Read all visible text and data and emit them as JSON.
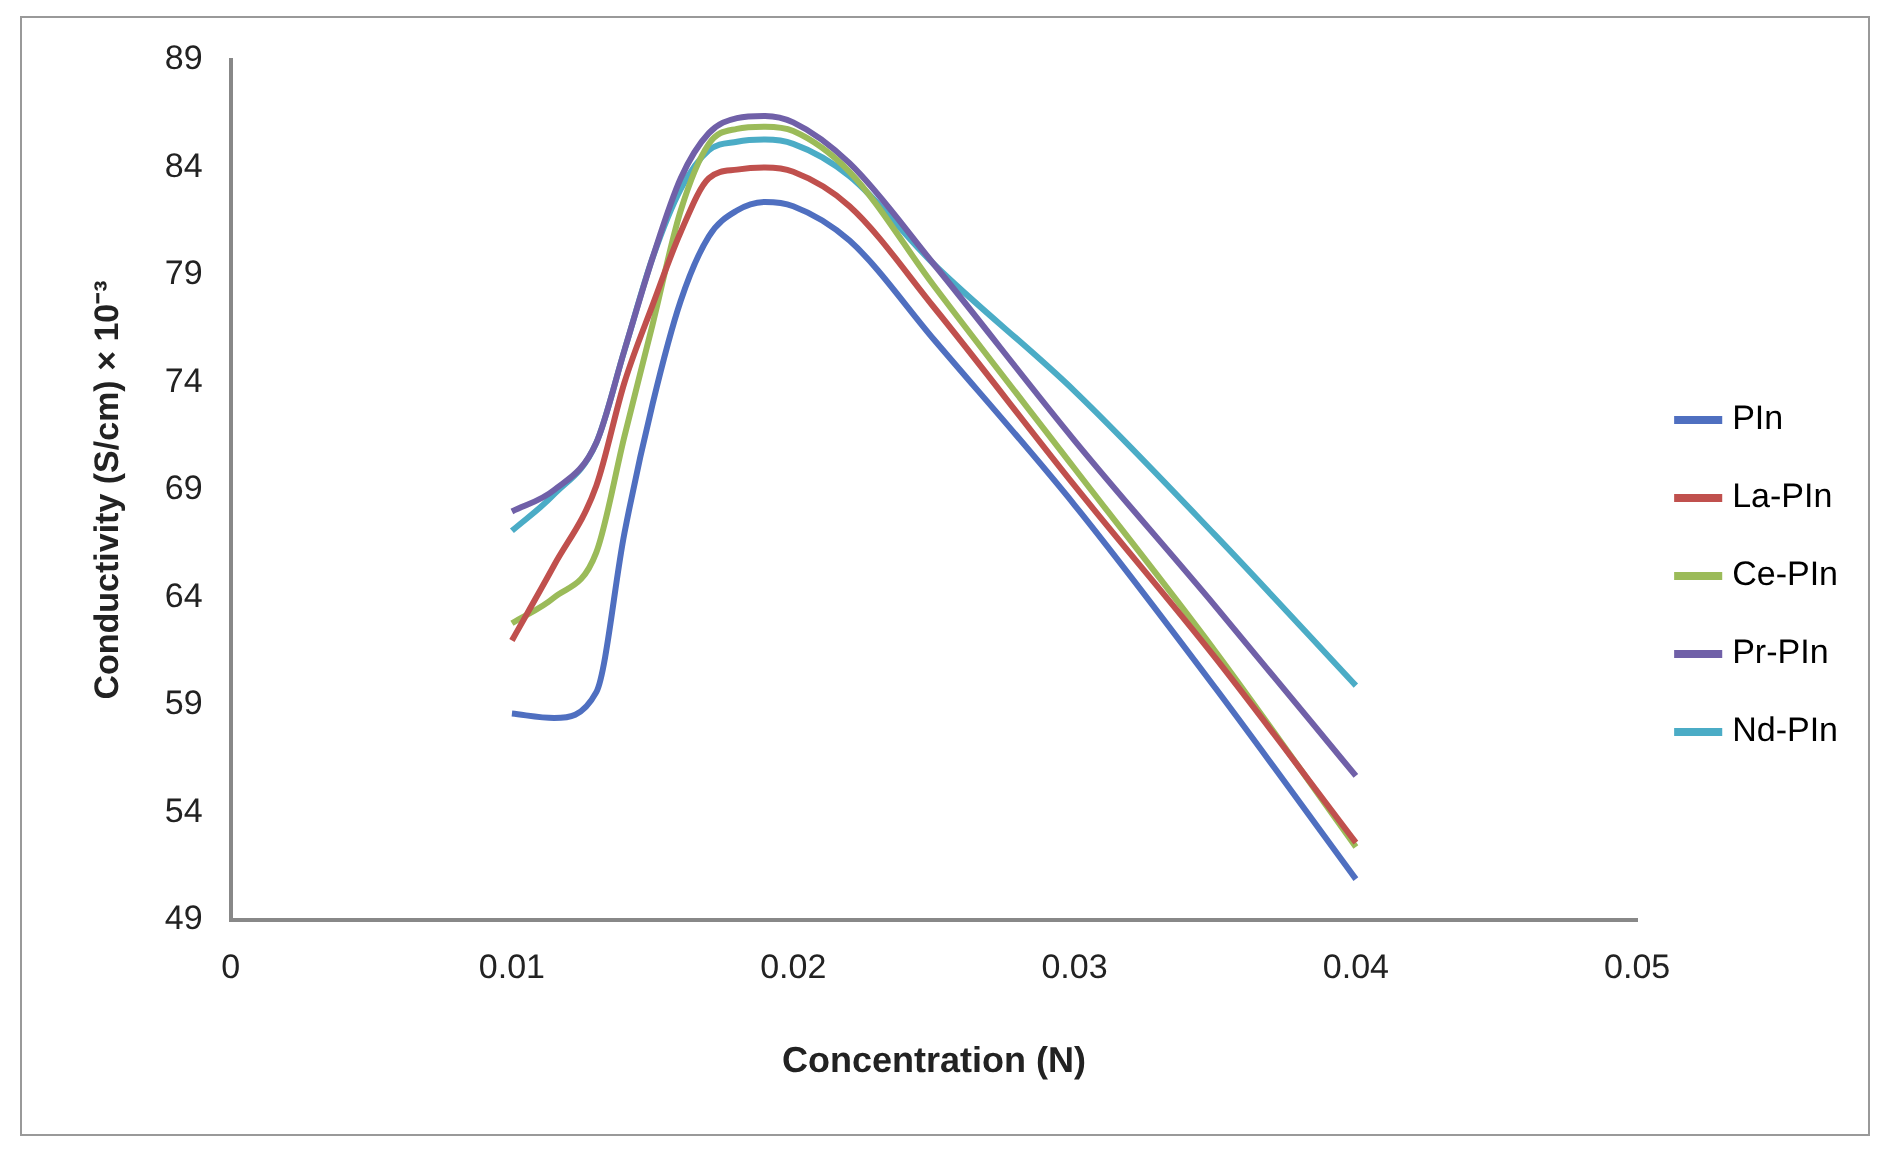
{
  "chart_data": {
    "type": "line",
    "xlabel": "Concentration (N)",
    "ylabel": "Conductivity (S/cm) × 10⁻³",
    "xlim": [
      0,
      0.05
    ],
    "xticks": [
      0,
      0.01,
      0.02,
      0.03,
      0.04,
      0.05
    ],
    "ylim": [
      49,
      89
    ],
    "yticks": [
      49,
      54,
      59,
      64,
      69,
      74,
      79,
      84,
      89
    ],
    "grid": false,
    "legend": "right",
    "marker": "none",
    "x": [
      0.01,
      0.0115,
      0.013,
      0.014,
      0.015,
      0.016,
      0.017,
      0.018,
      0.019,
      0.02,
      0.022,
      0.025,
      0.03,
      0.035,
      0.04
    ],
    "series": [
      {
        "name": "PIn",
        "color": "#4f6fc0",
        "values": [
          58.6,
          58.4,
          59.6,
          67,
          73,
          77.8,
          80.8,
          82,
          82.4,
          82.2,
          80.6,
          76,
          68.3,
          59.8,
          50.9
        ]
      },
      {
        "name": "La-PIn",
        "color": "#c0504d",
        "values": [
          62,
          65.5,
          69.2,
          74,
          77.6,
          81,
          83.5,
          83.9,
          84,
          83.8,
          82.2,
          77.5,
          69.2,
          61.2,
          52.6
        ]
      },
      {
        "name": "Ce-PIn",
        "color": "#9bbb59",
        "values": [
          62.8,
          64,
          66.1,
          71.5,
          76.7,
          82,
          85.1,
          85.8,
          85.9,
          85.7,
          83.8,
          78.5,
          70,
          61.5,
          52.4
        ]
      },
      {
        "name": "Pr-PIn",
        "color": "#7060a8",
        "values": [
          68,
          69,
          71.2,
          75.5,
          79.8,
          83.5,
          85.6,
          86.3,
          86.4,
          86.1,
          84.2,
          79.5,
          71.3,
          63.6,
          55.7
        ]
      },
      {
        "name": "Nd-PIn",
        "color": "#4bacc6",
        "values": [
          67.1,
          68.8,
          71.2,
          75.5,
          79.8,
          83,
          84.8,
          85.2,
          85.3,
          85.1,
          83.6,
          79.5,
          73.6,
          66.9,
          59.9
        ]
      }
    ]
  }
}
